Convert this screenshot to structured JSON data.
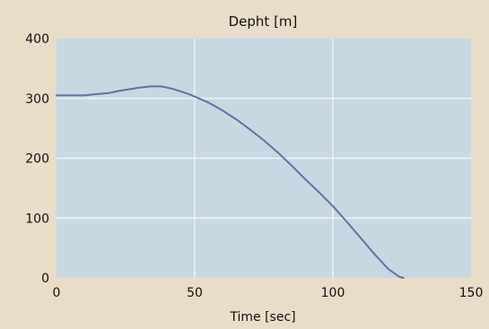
{
  "chart_data": {
    "type": "line",
    "title": "Depht [m]",
    "xlabel": "Time [sec]",
    "ylabel": "",
    "xlim": [
      0,
      150
    ],
    "ylim": [
      0,
      400
    ],
    "xticks": [
      0,
      50,
      100,
      150
    ],
    "yticks": [
      0,
      100,
      200,
      300,
      400
    ],
    "grid": true,
    "background_color": "#e7ddc8",
    "plot_color": "#c7d8e3",
    "line_color": "#5f73a1",
    "series": [
      {
        "name": "",
        "x": [
          0,
          10,
          14,
          19,
          22,
          26,
          30,
          34,
          38,
          40,
          42,
          44,
          46,
          48,
          50,
          55,
          60,
          65,
          70,
          75,
          80,
          85,
          90,
          95,
          100,
          105,
          110,
          115,
          120,
          124,
          125.5
        ],
        "y": [
          305,
          305,
          307,
          309,
          312,
          315,
          318,
          320,
          320,
          318,
          316,
          313,
          310,
          307,
          303,
          293,
          280,
          265,
          248,
          230,
          210,
          188,
          165,
          143,
          120,
          94,
          67,
          40,
          15,
          2,
          0
        ]
      }
    ]
  }
}
